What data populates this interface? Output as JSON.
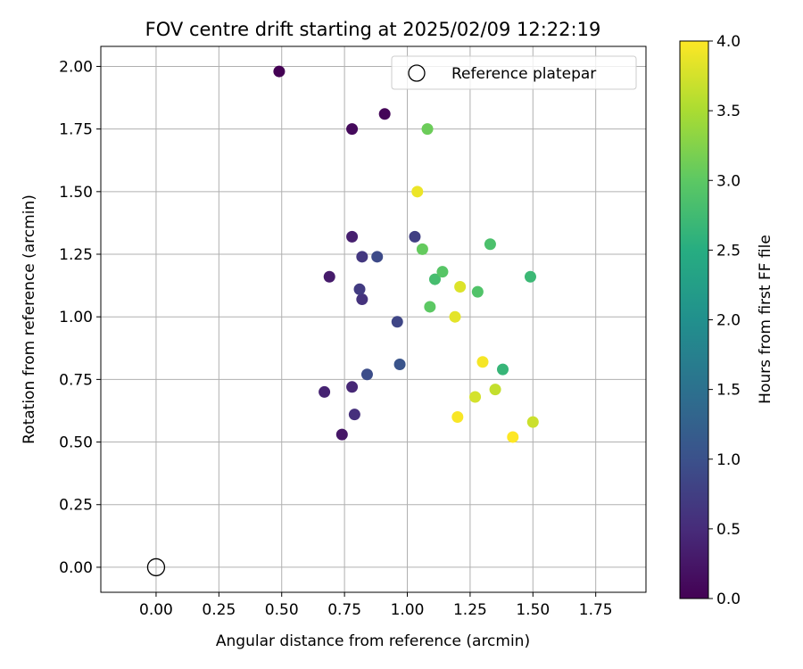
{
  "chart_data": {
    "type": "scatter",
    "title": "FOV centre drift starting at 2025/02/09 12:22:19",
    "xlabel": "Angular distance from reference (arcmin)",
    "ylabel": "Rotation from reference (arcmin)",
    "xlim": [
      -0.22,
      1.95
    ],
    "ylim": [
      -0.1,
      2.08
    ],
    "x_ticks": [
      "0.00",
      "0.25",
      "0.50",
      "0.75",
      "1.00",
      "1.25",
      "1.50",
      "1.75"
    ],
    "y_ticks": [
      "0.00",
      "0.25",
      "0.50",
      "0.75",
      "1.00",
      "1.25",
      "1.50",
      "1.75",
      "2.00"
    ],
    "grid": true,
    "legend": {
      "placement": "top-right",
      "entries": [
        "Reference platepar"
      ]
    },
    "reference_point": {
      "x": 0.0,
      "y": 0.0
    },
    "colorbar": {
      "label": "Hours from first FF file",
      "colormap": "viridis",
      "range": [
        0.0,
        4.0
      ],
      "ticks": [
        "0.0",
        "0.5",
        "1.0",
        "1.5",
        "2.0",
        "2.5",
        "3.0",
        "3.5",
        "4.0"
      ]
    },
    "points": [
      {
        "x": 0.49,
        "y": 1.98,
        "hours": 0.0
      },
      {
        "x": 0.91,
        "y": 1.81,
        "hours": 0.05
      },
      {
        "x": 0.78,
        "y": 1.75,
        "hours": 0.1
      },
      {
        "x": 0.74,
        "y": 0.53,
        "hours": 0.25
      },
      {
        "x": 0.69,
        "y": 1.16,
        "hours": 0.3
      },
      {
        "x": 0.78,
        "y": 1.32,
        "hours": 0.35
      },
      {
        "x": 0.67,
        "y": 0.7,
        "hours": 0.4
      },
      {
        "x": 0.78,
        "y": 0.72,
        "hours": 0.45
      },
      {
        "x": 0.79,
        "y": 0.61,
        "hours": 0.55
      },
      {
        "x": 0.82,
        "y": 1.24,
        "hours": 0.65
      },
      {
        "x": 0.82,
        "y": 1.07,
        "hours": 0.6
      },
      {
        "x": 0.81,
        "y": 1.11,
        "hours": 0.7
      },
      {
        "x": 1.03,
        "y": 1.32,
        "hours": 0.75
      },
      {
        "x": 0.96,
        "y": 0.98,
        "hours": 0.85
      },
      {
        "x": 0.88,
        "y": 1.24,
        "hours": 0.9
      },
      {
        "x": 0.84,
        "y": 0.77,
        "hours": 0.95
      },
      {
        "x": 0.97,
        "y": 0.81,
        "hours": 1.05
      },
      {
        "x": 1.38,
        "y": 0.79,
        "hours": 2.65
      },
      {
        "x": 1.49,
        "y": 1.16,
        "hours": 2.7
      },
      {
        "x": 1.11,
        "y": 1.15,
        "hours": 2.8
      },
      {
        "x": 1.33,
        "y": 1.29,
        "hours": 2.85
      },
      {
        "x": 1.28,
        "y": 1.1,
        "hours": 2.9
      },
      {
        "x": 1.14,
        "y": 1.18,
        "hours": 2.95
      },
      {
        "x": 1.09,
        "y": 1.04,
        "hours": 3.0
      },
      {
        "x": 1.06,
        "y": 1.27,
        "hours": 3.05
      },
      {
        "x": 1.08,
        "y": 1.75,
        "hours": 3.1
      },
      {
        "x": 1.35,
        "y": 0.71,
        "hours": 3.65
      },
      {
        "x": 1.5,
        "y": 0.58,
        "hours": 3.7
      },
      {
        "x": 1.27,
        "y": 0.68,
        "hours": 3.75
      },
      {
        "x": 1.21,
        "y": 1.12,
        "hours": 3.8
      },
      {
        "x": 1.19,
        "y": 1.0,
        "hours": 3.85
      },
      {
        "x": 1.04,
        "y": 1.5,
        "hours": 3.9
      },
      {
        "x": 1.3,
        "y": 0.82,
        "hours": 3.95
      },
      {
        "x": 1.2,
        "y": 0.6,
        "hours": 3.97
      },
      {
        "x": 1.42,
        "y": 0.52,
        "hours": 4.0
      }
    ]
  }
}
